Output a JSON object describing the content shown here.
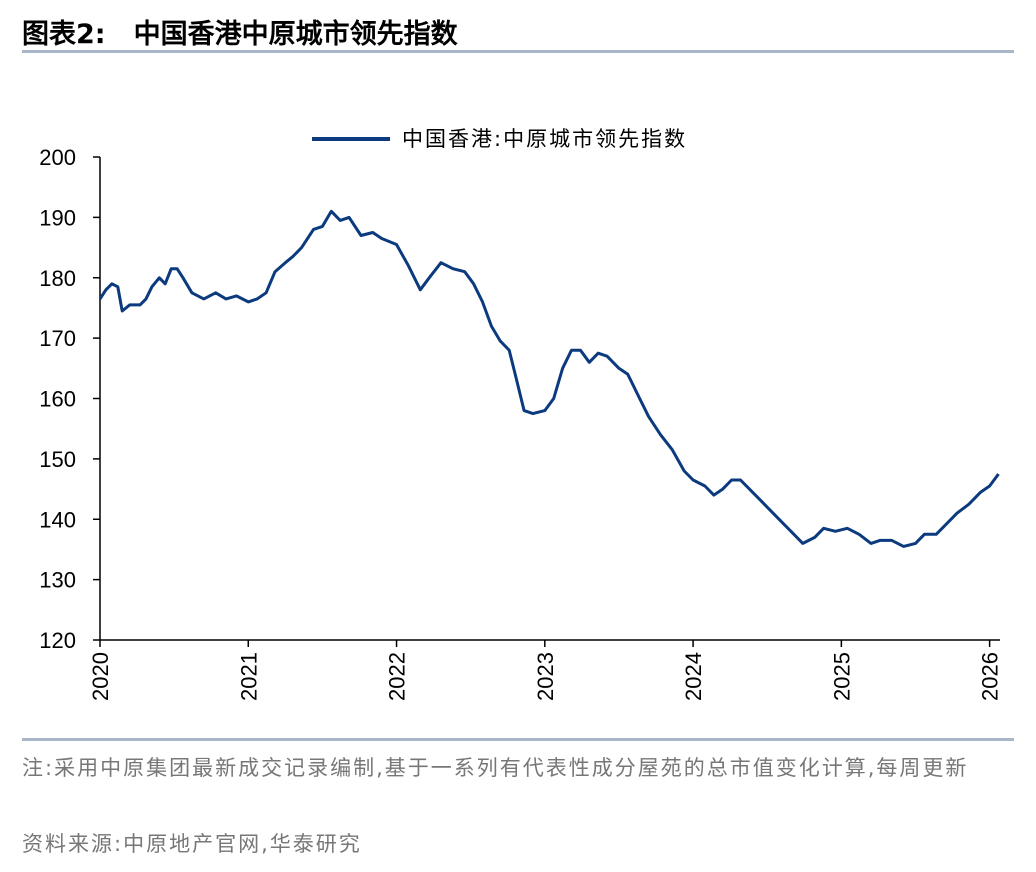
{
  "chart_data": {
    "type": "line",
    "figure_label": "图表2:",
    "title": "中国香港中原城市领先指数",
    "note": "注:采用中原集团最新成交记录编制,基于一系列有代表性成分屋苑的总市值变化计算,每周更新",
    "source": "资料来源:中原地产官网,华泰研究",
    "x": [
      2020.0,
      2020.04,
      2020.08,
      2020.12,
      2020.15,
      2020.2,
      2020.27,
      2020.31,
      2020.35,
      2020.4,
      2020.44,
      2020.48,
      2020.52,
      2020.56,
      2020.62,
      2020.7,
      2020.78,
      2020.85,
      2020.92,
      2021.0,
      2021.06,
      2021.12,
      2021.18,
      2021.25,
      2021.3,
      2021.36,
      2021.44,
      2021.5,
      2021.56,
      2021.62,
      2021.68,
      2021.76,
      2021.84,
      2021.9,
      2022.0,
      2022.08,
      2022.16,
      2022.22,
      2022.3,
      2022.38,
      2022.46,
      2022.52,
      2022.58,
      2022.64,
      2022.7,
      2022.76,
      2022.8,
      2022.86,
      2022.92,
      2023.0,
      2023.06,
      2023.12,
      2023.18,
      2023.24,
      2023.3,
      2023.36,
      2023.42,
      2023.5,
      2023.56,
      2023.62,
      2023.7,
      2023.78,
      2023.86,
      2023.94,
      2024.0,
      2024.08,
      2024.14,
      2024.2,
      2024.26,
      2024.32,
      2024.4,
      2024.46,
      2024.54,
      2024.62,
      2024.68,
      2024.74,
      2024.82,
      2024.88,
      2024.96,
      2025.04,
      2025.12,
      2025.2,
      2025.26,
      2025.34,
      2025.42,
      2025.5,
      2025.56,
      2025.64,
      2025.7,
      2025.78,
      2025.86,
      2025.94,
      2026.0,
      2026.06
    ],
    "series": [
      {
        "name": "中国香港:中原城市领先指数",
        "color": "#0b3a7e",
        "values": [
          176.5,
          178,
          179,
          178.5,
          174.5,
          175.5,
          175.5,
          176.5,
          178.5,
          180,
          179,
          181.5,
          181.5,
          180,
          177.5,
          176.5,
          177.5,
          176.5,
          177,
          176,
          176.5,
          177.5,
          181,
          182.5,
          183.5,
          185,
          188,
          188.5,
          191,
          189.5,
          190,
          187,
          187.5,
          186.5,
          185.5,
          182,
          178,
          180,
          182.5,
          181.5,
          181,
          179,
          176,
          172,
          169.5,
          168,
          164,
          158,
          157.5,
          158,
          160,
          165,
          168,
          168,
          166,
          167.5,
          167,
          165,
          164,
          161,
          157,
          154,
          151.5,
          148,
          146.5,
          145.5,
          144,
          145,
          146.5,
          146.5,
          144.5,
          143,
          141,
          139,
          137.5,
          136,
          137,
          138.5,
          138,
          138.5,
          137.5,
          136,
          136.5,
          136.5,
          135.5,
          136,
          137.5,
          137.5,
          139,
          141,
          142.5,
          144.5,
          145.5,
          147.5
        ]
      }
    ],
    "xlim": [
      2020,
      2026.07
    ],
    "xticks": [
      2020,
      2021,
      2022,
      2023,
      2024,
      2025,
      2026
    ],
    "ylim": [
      120,
      200
    ],
    "yticks": [
      120,
      130,
      140,
      150,
      160,
      170,
      180,
      190,
      200
    ]
  }
}
